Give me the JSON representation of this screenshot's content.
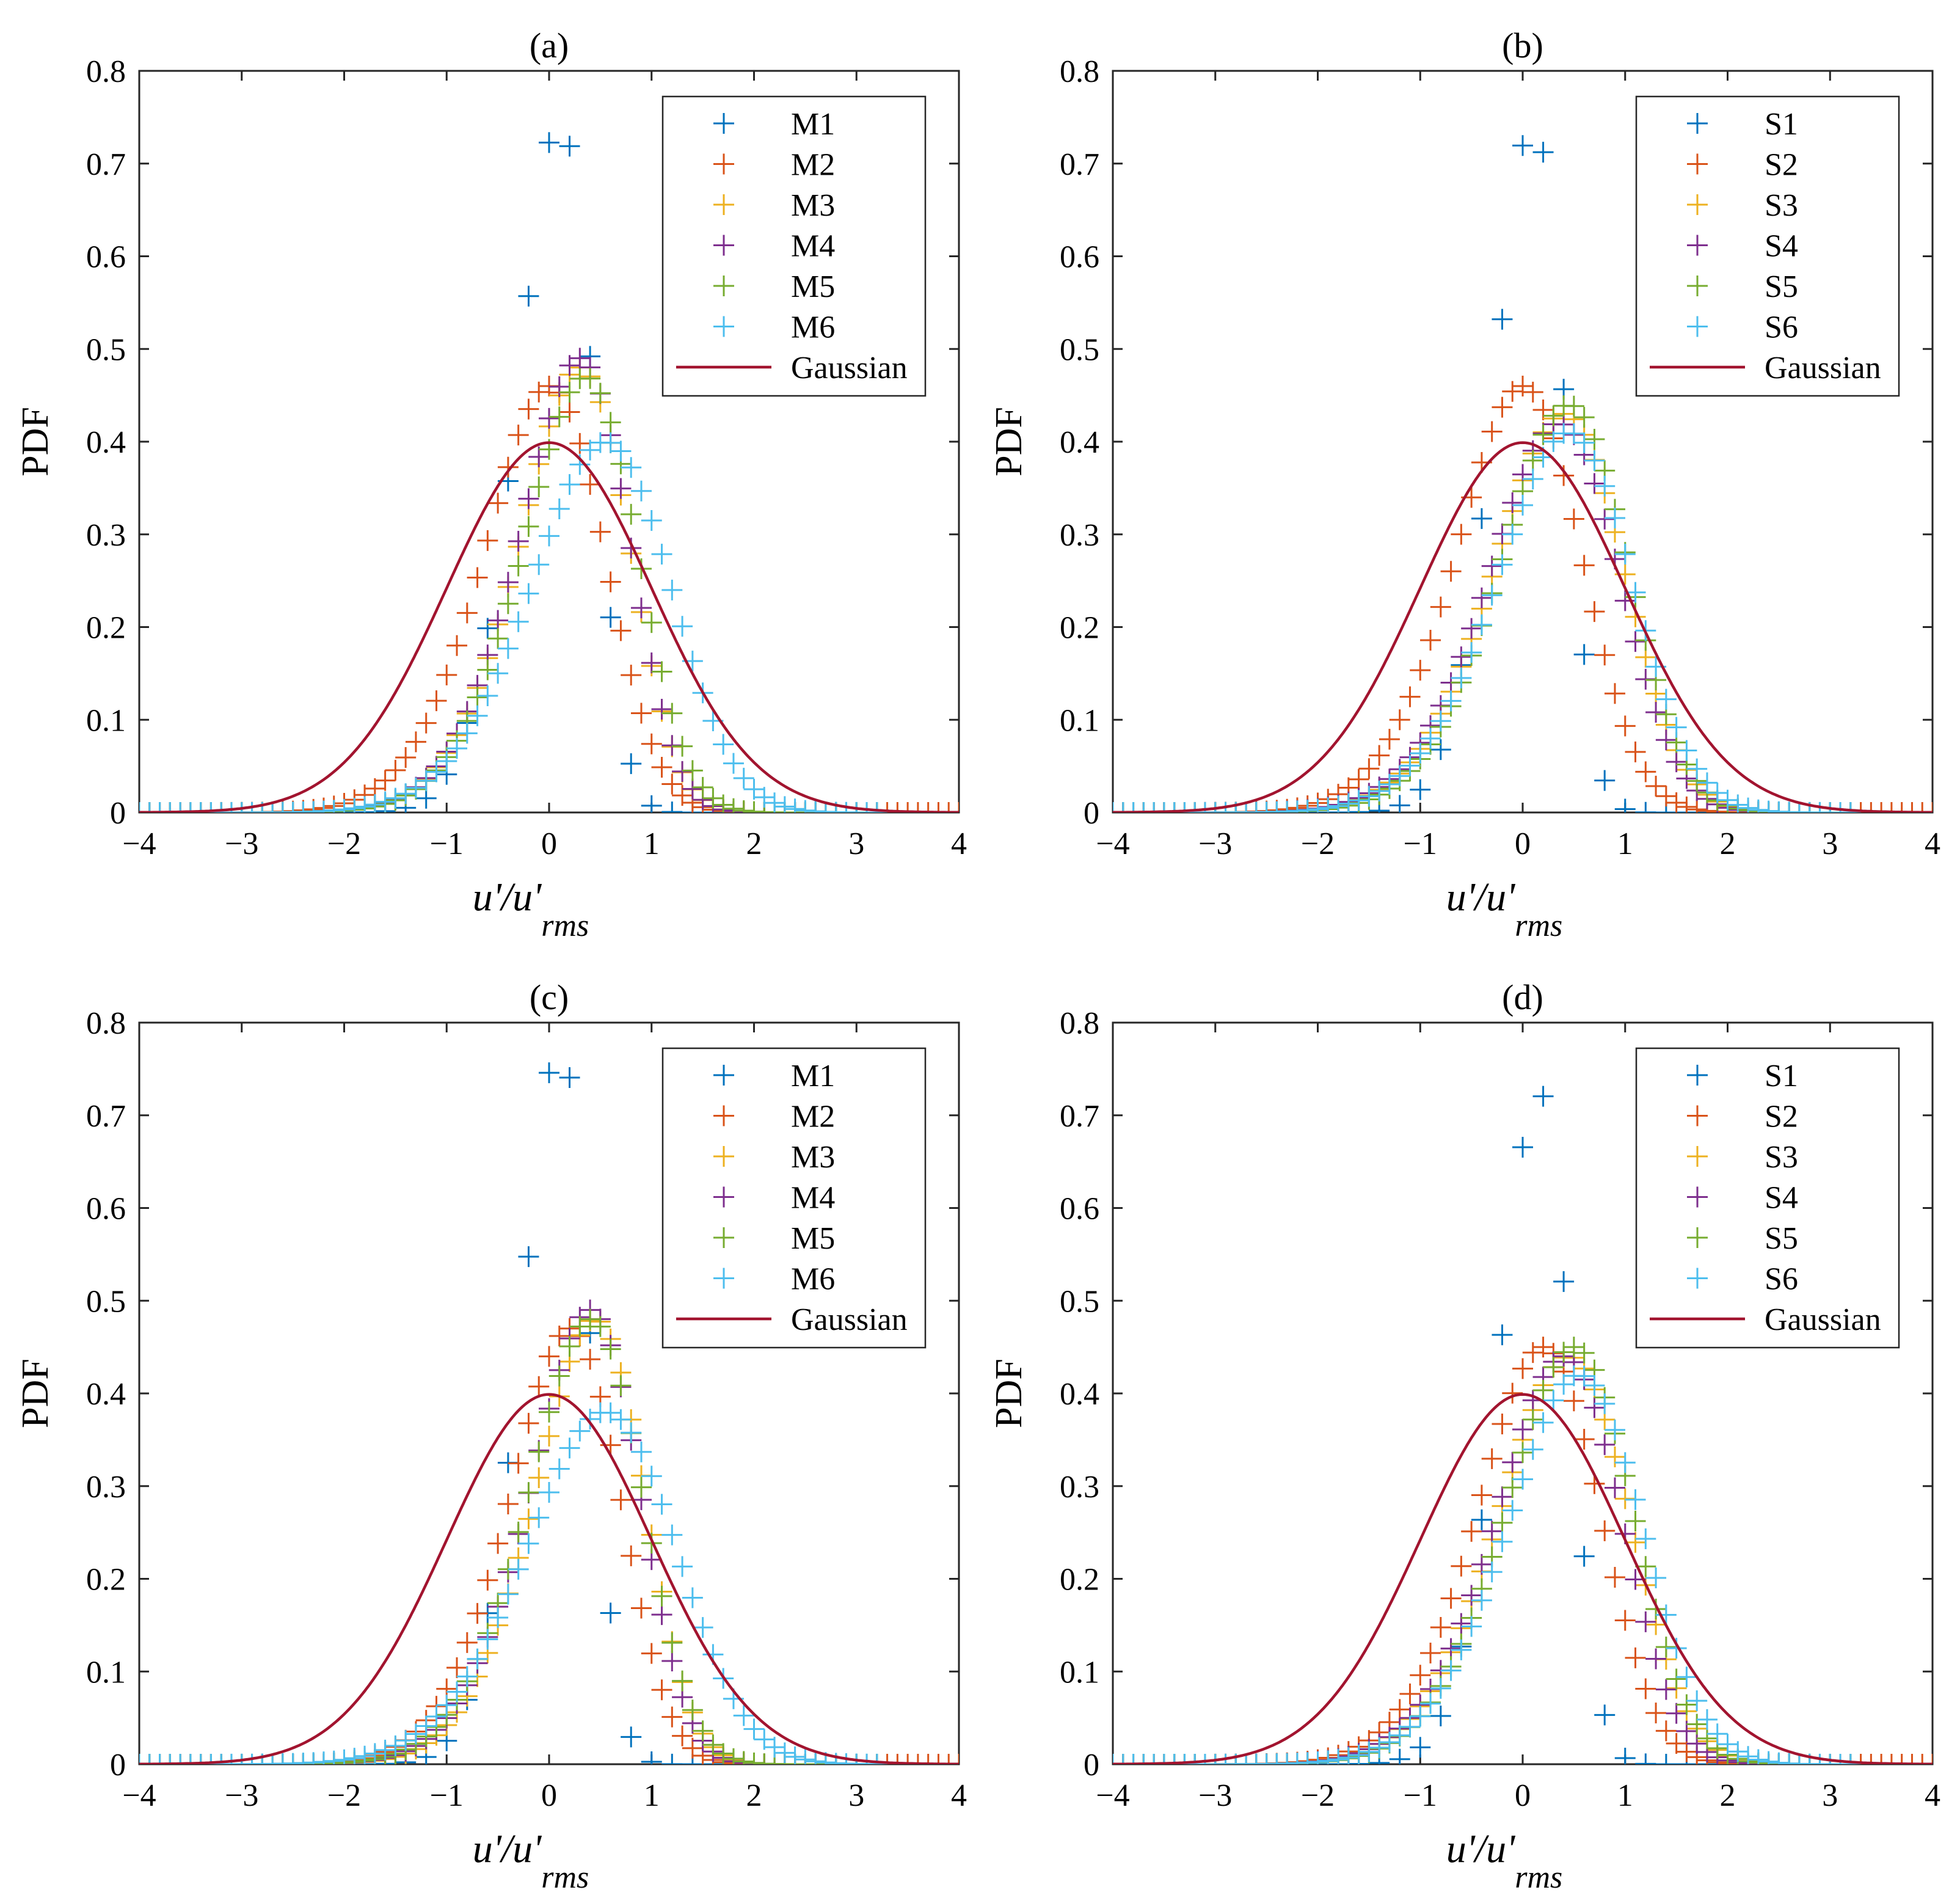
{
  "figure": {
    "series_colors": {
      "1": "#0072BD",
      "2": "#D95319",
      "3": "#EDB120",
      "4": "#7E2F8E",
      "5": "#77AC30",
      "6": "#4DBEEE",
      "gaussian": "#A2142F"
    },
    "marker": "plus"
  },
  "chart_data": [
    {
      "type": "scatter",
      "panel": "(a)",
      "title": "(a)",
      "xlabel_main": "u'/u'",
      "xlabel_sub": "rms",
      "ylabel": "PDF",
      "xlim": [
        -4,
        4
      ],
      "ylim": [
        0,
        0.8
      ],
      "xticks": [
        -4,
        -3,
        -2,
        -1,
        0,
        1,
        2,
        3,
        4
      ],
      "yticks": [
        0,
        0.1,
        0.2,
        0.3,
        0.4,
        0.5,
        0.6,
        0.7,
        0.8
      ],
      "legend_position": "top-right",
      "series": [
        {
          "name": "M1",
          "peak_x": 0.1,
          "peak": 0.75,
          "width": 0.55,
          "skew": -2.0
        },
        {
          "name": "M2",
          "peak_x": 0.0,
          "peak": 0.46,
          "width": 0.85,
          "skew": -1.7
        },
        {
          "name": "M3",
          "peak_x": 0.3,
          "peak": 0.48,
          "width": 0.8,
          "skew": -1.9
        },
        {
          "name": "M4",
          "peak_x": 0.3,
          "peak": 0.49,
          "width": 0.8,
          "skew": -1.9
        },
        {
          "name": "M5",
          "peak_x": 0.35,
          "peak": 0.47,
          "width": 0.82,
          "skew": -1.8
        },
        {
          "name": "M6",
          "peak_x": 0.55,
          "peak": 0.4,
          "width": 0.95,
          "skew": -1.5
        }
      ],
      "gaussian": {
        "name": "Gaussian",
        "mean": 0,
        "std": 1
      }
    },
    {
      "type": "scatter",
      "panel": "(b)",
      "title": "(b)",
      "xlabel_main": "u'/u'",
      "xlabel_sub": "rms",
      "ylabel": "PDF",
      "xlim": [
        -4,
        4
      ],
      "ylim": [
        0,
        0.8
      ],
      "xticks": [
        -4,
        -3,
        -2,
        -1,
        0,
        1,
        2,
        3,
        4
      ],
      "yticks": [
        0,
        0.1,
        0.2,
        0.3,
        0.4,
        0.5,
        0.6,
        0.7,
        0.8
      ],
      "legend_position": "top-right",
      "series": [
        {
          "name": "S1",
          "peak_x": 0.1,
          "peak": 0.75,
          "width": 0.5,
          "skew": -1.9
        },
        {
          "name": "S2",
          "peak_x": 0.0,
          "peak": 0.46,
          "width": 0.85,
          "skew": -1.5
        },
        {
          "name": "S3",
          "peak_x": 0.4,
          "peak": 0.43,
          "width": 0.9,
          "skew": -1.6
        },
        {
          "name": "S4",
          "peak_x": 0.35,
          "peak": 0.42,
          "width": 0.9,
          "skew": -1.6
        },
        {
          "name": "S5",
          "peak_x": 0.45,
          "peak": 0.44,
          "width": 0.88,
          "skew": -1.6
        },
        {
          "name": "S6",
          "peak_x": 0.45,
          "peak": 0.41,
          "width": 0.92,
          "skew": -1.5
        }
      ],
      "gaussian": {
        "name": "Gaussian",
        "mean": 0,
        "std": 1
      }
    },
    {
      "type": "scatter",
      "panel": "(c)",
      "title": "(c)",
      "xlabel_main": "u'/u'",
      "xlabel_sub": "rms",
      "ylabel": "PDF",
      "xlim": [
        -4,
        4
      ],
      "ylim": [
        0,
        0.8
      ],
      "xticks": [
        -4,
        -3,
        -2,
        -1,
        0,
        1,
        2,
        3,
        4
      ],
      "yticks": [
        0,
        0.1,
        0.2,
        0.3,
        0.4,
        0.5,
        0.6,
        0.7,
        0.8
      ],
      "legend_position": "top-right",
      "series": [
        {
          "name": "M1",
          "peak_x": 0.1,
          "peak": 0.78,
          "width": 0.5,
          "skew": -2.0
        },
        {
          "name": "M2",
          "peak_x": 0.2,
          "peak": 0.47,
          "width": 0.8,
          "skew": -1.8
        },
        {
          "name": "M3",
          "peak_x": 0.45,
          "peak": 0.48,
          "width": 0.8,
          "skew": -1.9
        },
        {
          "name": "M4",
          "peak_x": 0.4,
          "peak": 0.49,
          "width": 0.8,
          "skew": -1.9
        },
        {
          "name": "M5",
          "peak_x": 0.4,
          "peak": 0.48,
          "width": 0.82,
          "skew": -1.8
        },
        {
          "name": "M6",
          "peak_x": 0.55,
          "peak": 0.38,
          "width": 1.0,
          "skew": -1.4
        }
      ],
      "gaussian": {
        "name": "Gaussian",
        "mean": 0,
        "std": 1
      }
    },
    {
      "type": "scatter",
      "panel": "(d)",
      "title": "(d)",
      "xlabel_main": "u'/u'",
      "xlabel_sub": "rms",
      "ylabel": "PDF",
      "xlim": [
        -4,
        4
      ],
      "ylim": [
        0,
        0.8
      ],
      "xticks": [
        -4,
        -3,
        -2,
        -1,
        0,
        1,
        2,
        3,
        4
      ],
      "yticks": [
        0,
        0.1,
        0.2,
        0.3,
        0.4,
        0.5,
        0.6,
        0.7,
        0.8
      ],
      "legend_position": "top-right",
      "series": [
        {
          "name": "S1",
          "peak_x": 0.15,
          "peak": 0.73,
          "width": 0.5,
          "skew": -1.9
        },
        {
          "name": "S2",
          "peak_x": 0.2,
          "peak": 0.45,
          "width": 0.85,
          "skew": -1.6
        },
        {
          "name": "S3",
          "peak_x": 0.45,
          "peak": 0.44,
          "width": 0.9,
          "skew": -1.6
        },
        {
          "name": "S4",
          "peak_x": 0.4,
          "peak": 0.44,
          "width": 0.88,
          "skew": -1.7
        },
        {
          "name": "S5",
          "peak_x": 0.5,
          "peak": 0.45,
          "width": 0.88,
          "skew": -1.6
        },
        {
          "name": "S6",
          "peak_x": 0.55,
          "peak": 0.42,
          "width": 0.92,
          "skew": -1.5
        }
      ],
      "gaussian": {
        "name": "Gaussian",
        "mean": 0,
        "std": 1
      }
    }
  ]
}
